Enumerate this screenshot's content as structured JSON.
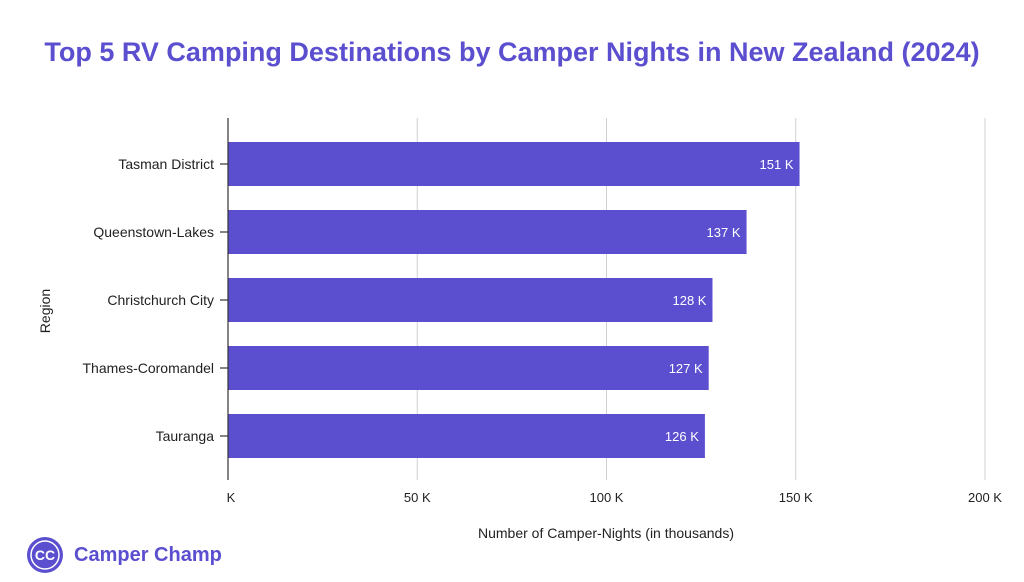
{
  "brand": {
    "name": "Camper Champ",
    "logo_icon": "camper-champ-logo-icon",
    "color": "#5b4fcf"
  },
  "chart_data": {
    "type": "bar",
    "orientation": "horizontal",
    "title": "Top 5 RV Camping Destinations by Camper Nights in New Zealand (2024)",
    "xlabel": "Number of Camper-Nights (in thousands)",
    "ylabel": "Region",
    "categories": [
      "Tasman District",
      "Queenstown-Lakes",
      "Christchurch City",
      "Thames-Coromandel",
      "Tauranga"
    ],
    "values": [
      151,
      137,
      128,
      127,
      126
    ],
    "value_labels": [
      "151 K",
      "137 K",
      "128 K",
      "127 K",
      "126 K"
    ],
    "xlim": [
      0,
      200
    ],
    "x_ticks": [
      0,
      50,
      100,
      150,
      200
    ],
    "x_tick_labels": [
      "K",
      "50 K",
      "100 K",
      "150 K",
      "200 K"
    ],
    "bar_color": "#5b4fcf",
    "grid": true
  }
}
